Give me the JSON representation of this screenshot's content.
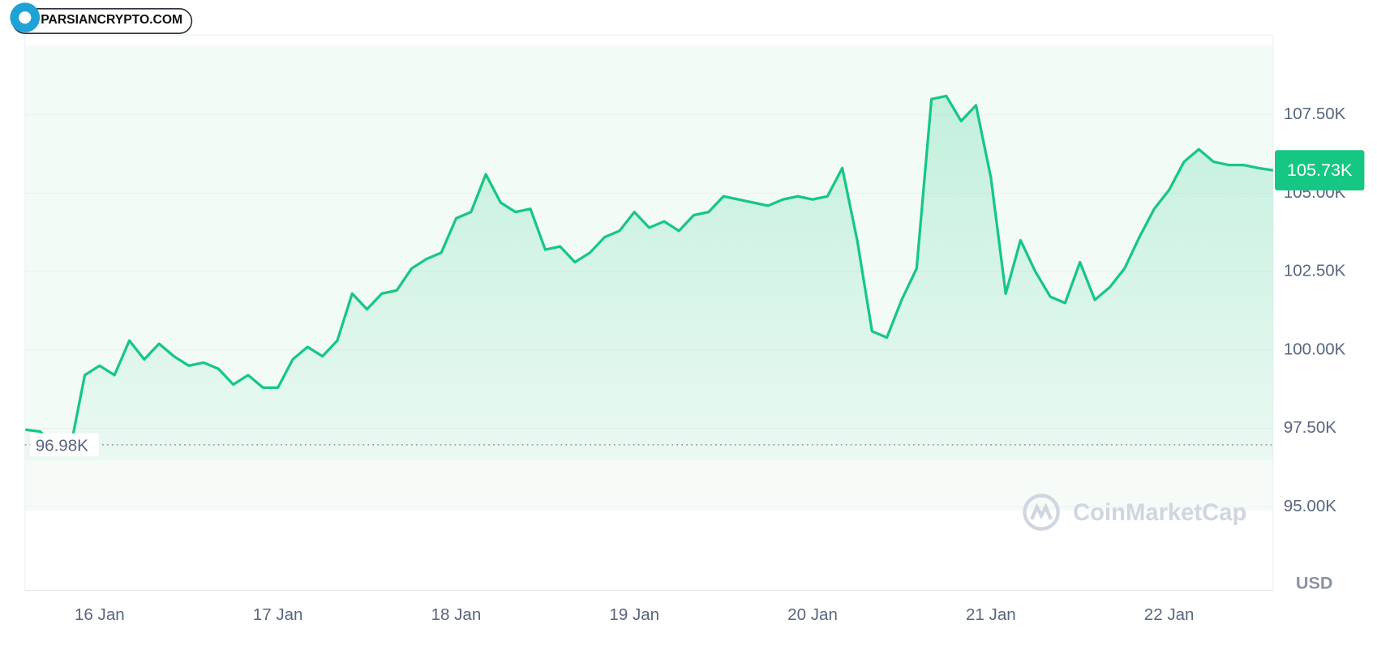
{
  "logo": "PARSIANCRYPTO.COM",
  "chart_data": {
    "type": "line",
    "categories": [
      null,
      null,
      null,
      null,
      null,
      "16 Jan",
      null,
      null,
      null,
      null,
      null,
      null,
      null,
      null,
      null,
      null,
      null,
      "17 Jan",
      null,
      null,
      null,
      null,
      null,
      null,
      null,
      null,
      null,
      null,
      null,
      "18 Jan",
      null,
      null,
      null,
      null,
      null,
      null,
      null,
      null,
      null,
      null,
      null,
      "19 Jan",
      null,
      null,
      null,
      null,
      null,
      null,
      null,
      null,
      null,
      null,
      null,
      "20 Jan",
      null,
      null,
      null,
      null,
      null,
      null,
      null,
      null,
      null,
      null,
      null,
      "21 Jan",
      null,
      null,
      null,
      null,
      null,
      null,
      null,
      null,
      null,
      null,
      null,
      "22 Jan",
      null,
      null,
      null,
      null,
      null,
      null,
      null
    ],
    "series": [
      {
        "color": "#16c784",
        "values": [
          97460,
          97400,
          96900,
          96800,
          99200,
          99500,
          99200,
          100300,
          99700,
          100200,
          99800,
          99500,
          99600,
          99400,
          98900,
          99200,
          98800,
          98800,
          99700,
          100100,
          99800,
          100300,
          101800,
          101300,
          101800,
          101900,
          102600,
          102900,
          103100,
          104200,
          104400,
          105600,
          104700,
          104400,
          104500,
          103200,
          103300,
          102800,
          103100,
          103600,
          103800,
          104400,
          103900,
          104100,
          103800,
          104300,
          104400,
          104900,
          104800,
          104700,
          104600,
          104800,
          104900,
          104800,
          104900,
          105800,
          103500,
          100600,
          100400,
          101600,
          102600,
          108000,
          108100,
          107300,
          107800,
          105500,
          101800,
          103500,
          102500,
          101700,
          101500,
          102800,
          101600,
          102000,
          102600,
          103600,
          104500,
          105100,
          106000,
          106400,
          106000,
          105900,
          105900,
          105800,
          105730
        ]
      }
    ],
    "ylim": [
      92340,
      110040
    ],
    "yticks": [
      {
        "value": 95000,
        "label": "95.00K"
      },
      {
        "value": 97500,
        "label": "97.50K"
      },
      {
        "value": 100000,
        "label": "100.00K"
      },
      {
        "value": 102500,
        "label": "102.50K"
      },
      {
        "value": 105000,
        "label": "105.00K"
      },
      {
        "value": 107500,
        "label": "107.50K"
      }
    ],
    "grid": true,
    "open_price": {
      "value": 96980,
      "label": "96.98K"
    },
    "current_price": {
      "value": 105730,
      "label": "105.73K"
    },
    "currency": "USD",
    "watermark": "CoinMarketCap"
  }
}
